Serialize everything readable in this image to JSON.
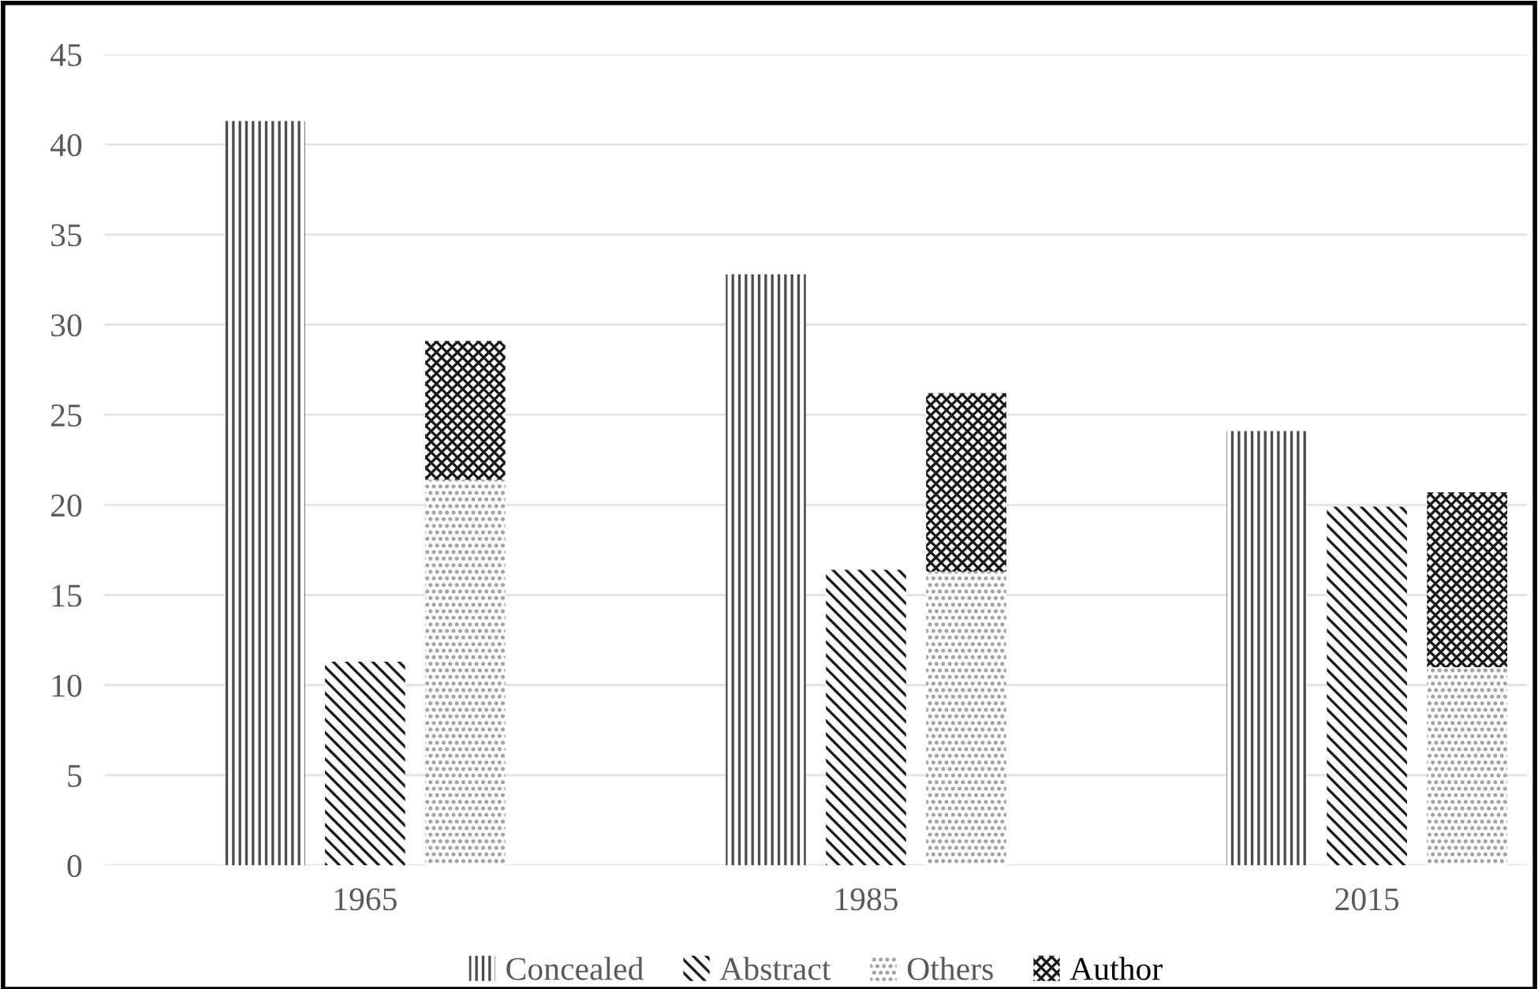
{
  "chart_data": {
    "type": "bar",
    "stacked": true,
    "categories": [
      null,
      "1965",
      null,
      null,
      null,
      null,
      "1985",
      null,
      null,
      null,
      null,
      "2015",
      null
    ],
    "series": [
      {
        "name": "Concealed",
        "color": "#4d4d4d",
        "values": [
          41.3,
          null,
          null,
          null,
          null,
          32.8,
          null,
          null,
          null,
          null,
          24.1,
          null,
          null
        ]
      },
      {
        "name": "Abstract",
        "color": "#1a1a1a",
        "values": [
          null,
          11.3,
          null,
          null,
          null,
          null,
          16.4,
          null,
          null,
          null,
          null,
          19.9,
          null
        ]
      },
      {
        "name": "Others",
        "color": "#9a9a9a",
        "values": [
          null,
          null,
          21.4,
          null,
          null,
          null,
          null,
          16.3,
          null,
          null,
          null,
          null,
          11.0
        ]
      },
      {
        "name": "Author",
        "color": "#1a1a1a",
        "values": [
          null,
          null,
          7.7,
          null,
          null,
          null,
          null,
          9.9,
          null,
          null,
          null,
          null,
          9.7
        ]
      }
    ],
    "ylim": [
      0,
      45
    ],
    "yticks": [
      0,
      5,
      10,
      15,
      20,
      25,
      30,
      35,
      40,
      45
    ],
    "grid": "y",
    "legend": "bottom"
  }
}
